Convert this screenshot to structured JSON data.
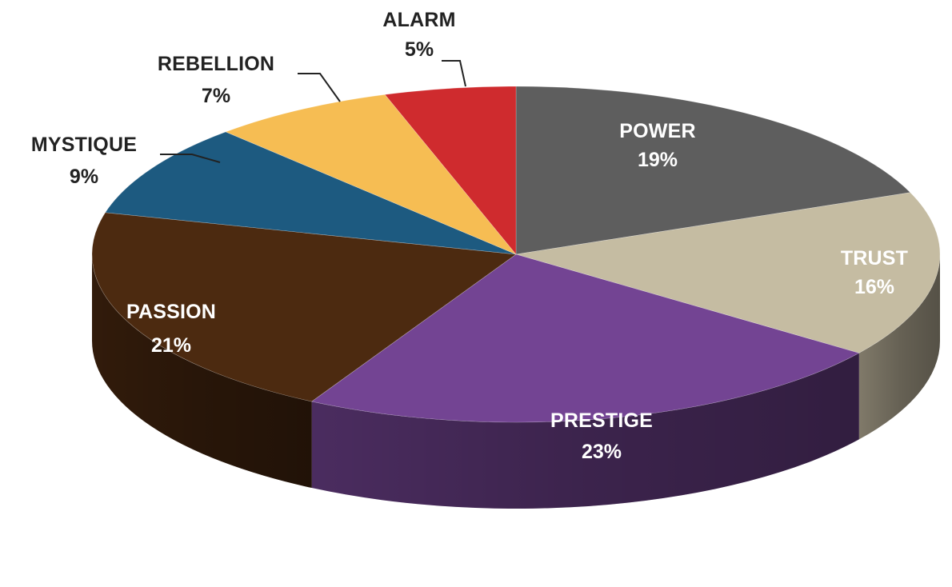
{
  "chart_data": {
    "type": "pie",
    "style": "3d",
    "title": "",
    "start_angle_deg": 0,
    "direction": "clockwise",
    "slices": [
      {
        "label": "POWER",
        "value": 19,
        "value_label": "19%",
        "color": "#5e5e5e",
        "label_color": "#ffffff",
        "label_position": "inside"
      },
      {
        "label": "TRUST",
        "value": 16,
        "value_label": "16%",
        "color": "#c5bca2",
        "label_color": "#ffffff",
        "label_position": "inside"
      },
      {
        "label": "PRESTIGE",
        "value": 23,
        "value_label": "23%",
        "color": "#734493",
        "label_color": "#ffffff",
        "label_position": "inside"
      },
      {
        "label": "PASSION",
        "value": 21,
        "value_label": "21%",
        "color": "#4c2a10",
        "label_color": "#ffffff",
        "label_position": "inside"
      },
      {
        "label": "MYSTIQUE",
        "value": 9,
        "value_label": "9%",
        "color": "#1d5a80",
        "label_color": "#222222",
        "label_position": "outside"
      },
      {
        "label": "REBELLION",
        "value": 7,
        "value_label": "7%",
        "color": "#f6bd53",
        "label_color": "#222222",
        "label_position": "outside"
      },
      {
        "label": "ALARM",
        "value": 5,
        "value_label": "5%",
        "color": "#cf2b2e",
        "label_color": "#222222",
        "label_position": "outside"
      }
    ]
  }
}
